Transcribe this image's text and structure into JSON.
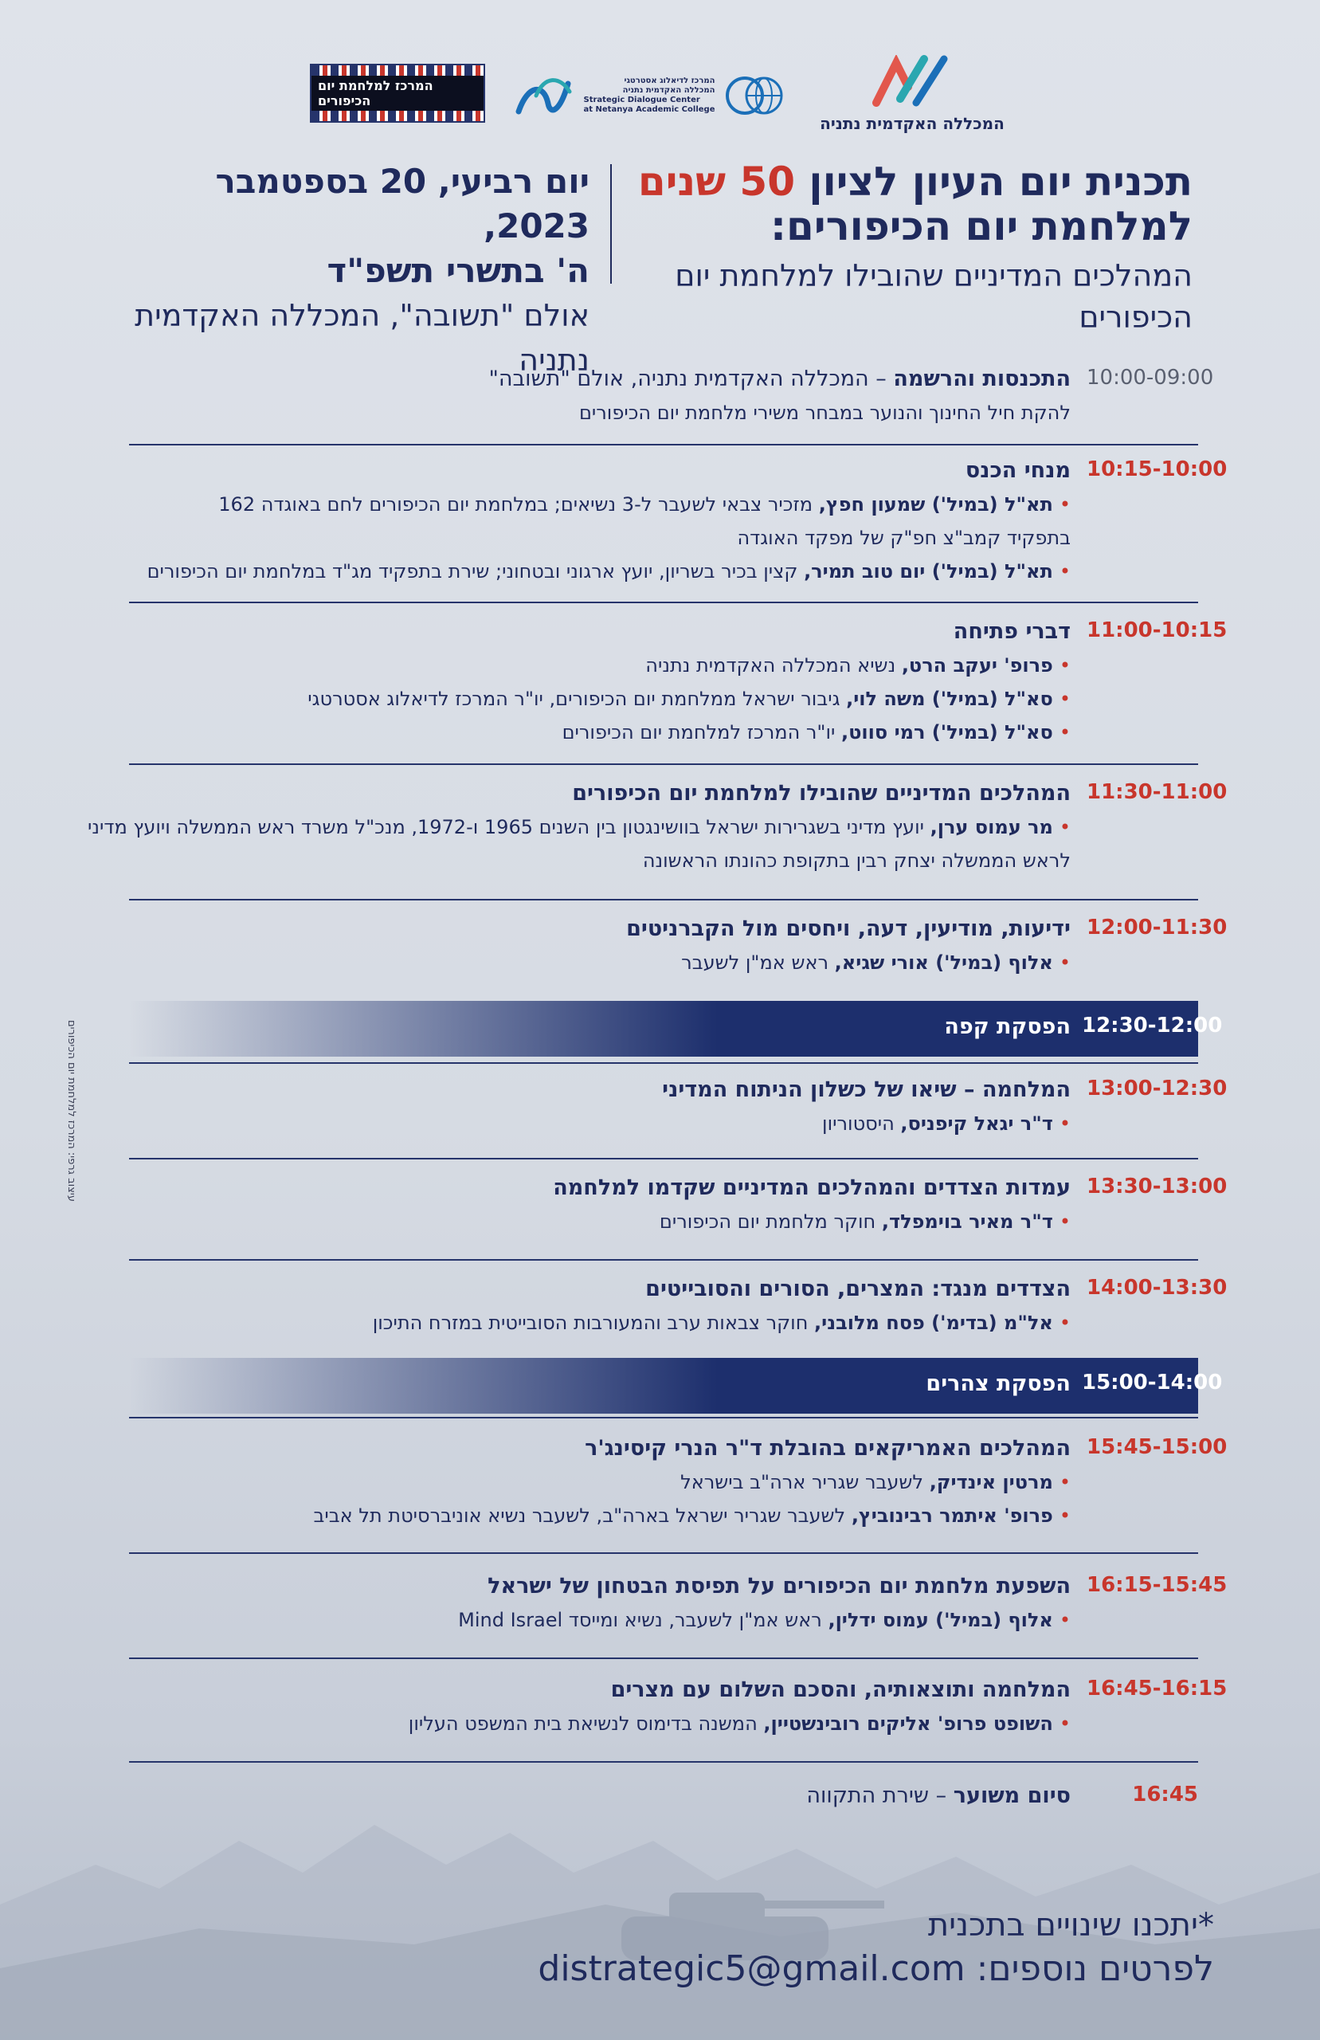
{
  "logos": {
    "yk_center": "המרכז למלחמת יום הכיפורים",
    "sdc_lines": [
      "המרכז לדיאלוג אסטרטגי",
      "המכללה האקדמית נתניה",
      "Strategic Dialogue Center",
      "at Netanya Academic College"
    ],
    "netanya": "המכללה האקדמית נתניה",
    "colors": {
      "navy": "#1f2a5c",
      "red": "#c8362c",
      "teal": "#2aa7b0",
      "blue": "#1b6fb8"
    }
  },
  "header": {
    "title_line1_pre": "תכנית יום העיון לציון ",
    "title_highlight": "50 שנים",
    "title_line2": "למלחמת יום הכיפורים:",
    "subtitle": "המהלכים המדיניים שהובילו למלחמת יום הכיפורים",
    "date_line1": "יום רביעי, 20 בספטמבר 2023,",
    "date_line2": "ה' בתשרי תשפ\"ד",
    "venue": "אולם \"תשובה\", המכללה האקדמית נתניה"
  },
  "schedule": [
    {
      "time": "10:00-09:00",
      "title": "התכנסות והרשמה",
      "title_suffix": " – המכללה האקדמית נתניה, אולם \"תשובה\"",
      "lines": [
        {
          "text": "להקת חיל החינוך והנוער במבחר משירי מלחמת יום הכיפורים",
          "bullet": false
        }
      ]
    },
    {
      "time": "10:15-10:00",
      "title": "מנחי הכנס",
      "lines": [
        {
          "bold": "תא\"ל (במיל') שמעון חפץ,",
          "text": " מזכיר צבאי לשעבר ל-3 נשיאים; במלחמת יום הכיפורים לחם באוגדה 162",
          "bullet": true
        },
        {
          "text": "בתפקיד קמב\"צ חפ\"ק של מפקד האוגדה",
          "bullet": false
        },
        {
          "bold": "תא\"ל (במיל') יום טוב תמיר,",
          "text": " קצין בכיר בשריון, יועץ ארגוני ובטחוני; שירת בתפקיד מג\"ד במלחמת יום הכיפורים",
          "bullet": true
        }
      ]
    },
    {
      "time": "11:00-10:15",
      "title": "דברי פתיחה",
      "lines": [
        {
          "bold": "פרופ' יעקב הרט,",
          "text": " נשיא המכללה האקדמית נתניה",
          "bullet": true
        },
        {
          "bold": "סא\"ל (במיל') משה לוי,",
          "text": " גיבור ישראל ממלחמת יום הכיפורים, יו\"ר המרכז לדיאלוג אסטרטגי",
          "bullet": true
        },
        {
          "bold": "סא\"ל (במיל') רמי סווט,",
          "text": " יו\"ר המרכז למלחמת יום הכיפורים",
          "bullet": true
        }
      ]
    },
    {
      "time": "11:30-11:00",
      "title": "המהלכים המדיניים שהובילו למלחמת יום הכיפורים",
      "lines": [
        {
          "bold": "מר עמוס ערן,",
          "text": " יועץ מדיני בשגרירות ישראל בוושינגטון בין השנים 1965 ו-1972, מנכ\"ל משרד ראש הממשלה ויועץ מדיני",
          "bullet": true
        },
        {
          "text": "לראש הממשלה יצחק רבין בתקופת כהונתו הראשונה",
          "bullet": false
        }
      ]
    },
    {
      "time": "12:00-11:30",
      "title": "ידיעות, מודיעין, דעה, ויחסים מול הקברניטים",
      "lines": [
        {
          "bold": "אלוף (במיל') אורי שגיא,",
          "text": " ראש אמ\"ן לשעבר",
          "bullet": true
        }
      ]
    },
    {
      "time": "12:30-12:00",
      "title": "הפסקת קפה",
      "band": true
    },
    {
      "time": "13:00-12:30",
      "title": "המלחמה – שיאו של כשלון הניתוח המדיני",
      "lines": [
        {
          "bold": "ד\"ר יגאל קיפניס,",
          "text": " היסטוריון",
          "bullet": true
        }
      ]
    },
    {
      "time": "13:30-13:00",
      "title": "עמדות הצדדים והמהלכים המדיניים שקדמו למלחמה",
      "lines": [
        {
          "bold": "ד\"ר מאיר בוימפלד,",
          "text": " חוקר מלחמת יום הכיפורים",
          "bullet": true
        }
      ]
    },
    {
      "time": "14:00-13:30",
      "title": "הצדדים מנגד: המצרים, הסורים והסובייטים",
      "lines": [
        {
          "bold": "אל\"מ (בדימ') פסח מלובני,",
          "text": " חוקר צבאות ערב והמעורבות הסובייטית במזרח התיכון",
          "bullet": true
        }
      ]
    },
    {
      "time": "15:00-14:00",
      "title": "הפסקת צהרים",
      "band": true
    },
    {
      "time": "15:45-15:00",
      "title": "המהלכים האמריקאים בהובלת ד\"ר הנרי קיסינג'ר",
      "lines": [
        {
          "bold": "מרטין אינדיק,",
          "text": " לשעבר שגריר ארה\"ב בישראל",
          "bullet": true
        },
        {
          "bold": "פרופ' איתמר רבינוביץ,",
          "text": " לשעבר שגריר ישראל בארה\"ב, לשעבר נשיא אוניברסיטת תל אביב",
          "bullet": true
        }
      ]
    },
    {
      "time": "16:15-15:45",
      "title": "השפעת מלחמת יום הכיפורים על תפיסת הבטחון של ישראל",
      "lines": [
        {
          "bold": "אלוף (במיל') עמוס ידלין,",
          "text": " ראש אמ\"ן לשעבר, נשיא ומייסד Mind Israel",
          "bullet": true
        }
      ]
    },
    {
      "time": "16:45-16:15",
      "title": "המלחמה ותוצאותיה, והסכם השלום עם מצרים",
      "lines": [
        {
          "bold": "השופט פרופ' אליקים רובינשטיין,",
          "text": " המשנה בדימוס לנשיאת בית המשפט העליון",
          "bullet": true
        }
      ]
    },
    {
      "time": "16:45",
      "title": "סיום משוער",
      "title_suffix": " – שירת התקווה",
      "lines": []
    }
  ],
  "footer": {
    "note": "*יתכנו שינויים בתכנית",
    "contact_label": "לפרטים נוספים: ",
    "email": "distrategic5@gmail.com"
  },
  "credit": "עיצוב גרפי: המרכז למלחמת יום הכיפורים"
}
